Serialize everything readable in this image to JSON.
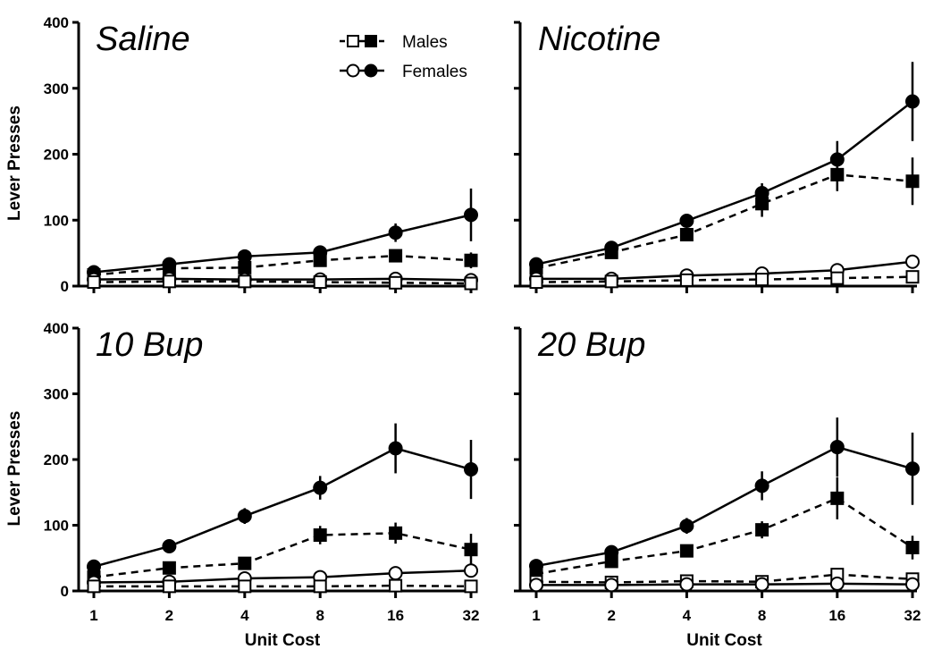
{
  "figure": {
    "legend": {
      "entries": [
        {
          "label": "Males",
          "line": "dashed",
          "markers": [
            "open-square",
            "filled-square"
          ]
        },
        {
          "label": "Females",
          "line": "solid",
          "markers": [
            "open-circle",
            "filled-circle"
          ]
        }
      ]
    },
    "x_title": "Unit Cost",
    "y_title": "Lever Presses"
  },
  "chart_data": [
    {
      "type": "line",
      "title": "Saline",
      "xlabel": "Unit Cost",
      "ylabel": "Lever Presses",
      "x": [
        1,
        2,
        4,
        8,
        16,
        32
      ],
      "x_scale": "log2",
      "y_ticks": [
        0,
        100,
        200,
        300,
        400
      ],
      "ylim": [
        0,
        400
      ],
      "series": [
        {
          "name": "Females",
          "marker": "filled-circle",
          "line": "solid",
          "values": [
            21,
            33,
            45,
            51,
            81,
            108
          ],
          "errors": [
            3,
            5,
            4,
            6,
            14,
            40
          ]
        },
        {
          "name": "Males",
          "marker": "filled-square",
          "line": "dashed",
          "values": [
            17,
            27,
            28,
            39,
            46,
            39
          ],
          "errors": [
            3,
            4,
            7,
            6,
            8,
            12
          ]
        },
        {
          "name": "Females",
          "marker": "open-circle",
          "line": "solid",
          "values": [
            10,
            11,
            10,
            10,
            11,
            9
          ],
          "errors": [
            2,
            2,
            2,
            2,
            2,
            2
          ]
        },
        {
          "name": "Males",
          "marker": "open-square",
          "line": "dashed",
          "values": [
            6,
            7,
            7,
            6,
            5,
            4
          ],
          "errors": [
            1,
            1,
            1,
            1,
            1,
            1
          ]
        }
      ]
    },
    {
      "type": "line",
      "title": "Nicotine",
      "xlabel": "Unit Cost",
      "ylabel": "",
      "x": [
        1,
        2,
        4,
        8,
        16,
        32
      ],
      "x_scale": "log2",
      "y_ticks": [
        0,
        100,
        200,
        300,
        400
      ],
      "ylim": [
        0,
        400
      ],
      "series": [
        {
          "name": "Females",
          "marker": "filled-circle",
          "line": "solid",
          "values": [
            33,
            58,
            99,
            141,
            192,
            280
          ],
          "errors": [
            4,
            5,
            10,
            15,
            28,
            60
          ]
        },
        {
          "name": "Males",
          "marker": "filled-square",
          "line": "dashed",
          "values": [
            27,
            51,
            78,
            125,
            169,
            159
          ],
          "errors": [
            4,
            6,
            10,
            20,
            25,
            36
          ]
        },
        {
          "name": "Females",
          "marker": "open-circle",
          "line": "solid",
          "values": [
            11,
            11,
            16,
            19,
            24,
            37
          ],
          "errors": [
            2,
            2,
            2,
            3,
            3,
            4
          ]
        },
        {
          "name": "Males",
          "marker": "open-square",
          "line": "dashed",
          "values": [
            6,
            7,
            9,
            10,
            12,
            14
          ],
          "errors": [
            1,
            1,
            1,
            1,
            1,
            2
          ]
        }
      ]
    },
    {
      "type": "line",
      "title": "10 Bup",
      "xlabel": "Unit Cost",
      "ylabel": "Lever Presses",
      "x": [
        1,
        2,
        4,
        8,
        16,
        32
      ],
      "x_scale": "log2",
      "y_ticks": [
        0,
        100,
        200,
        300,
        400
      ],
      "ylim": [
        0,
        400
      ],
      "series": [
        {
          "name": "Females",
          "marker": "filled-circle",
          "line": "solid",
          "values": [
            37,
            68,
            114,
            157,
            217,
            185
          ],
          "errors": [
            4,
            5,
            12,
            18,
            38,
            45
          ]
        },
        {
          "name": "Males",
          "marker": "filled-square",
          "line": "dashed",
          "values": [
            21,
            35,
            42,
            85,
            88,
            63
          ],
          "errors": [
            3,
            4,
            5,
            14,
            16,
            24
          ]
        },
        {
          "name": "Females",
          "marker": "open-circle",
          "line": "solid",
          "values": [
            13,
            14,
            19,
            21,
            27,
            31
          ],
          "errors": [
            2,
            2,
            3,
            3,
            4,
            5
          ]
        },
        {
          "name": "Males",
          "marker": "open-square",
          "line": "dashed",
          "values": [
            7,
            7,
            7,
            7,
            8,
            7
          ],
          "errors": [
            1,
            1,
            1,
            1,
            1,
            1
          ]
        }
      ]
    },
    {
      "type": "line",
      "title": "20 Bup",
      "xlabel": "Unit Cost",
      "ylabel": "",
      "x": [
        1,
        2,
        4,
        8,
        16,
        32
      ],
      "x_scale": "log2",
      "y_ticks": [
        0,
        100,
        200,
        300,
        400
      ],
      "ylim": [
        0,
        400
      ],
      "series": [
        {
          "name": "Females",
          "marker": "filled-circle",
          "line": "solid",
          "values": [
            38,
            59,
            99,
            160,
            219,
            186
          ],
          "errors": [
            4,
            6,
            12,
            22,
            45,
            55
          ]
        },
        {
          "name": "Males",
          "marker": "filled-square",
          "line": "dashed",
          "values": [
            26,
            45,
            61,
            93,
            141,
            66
          ],
          "errors": [
            4,
            5,
            7,
            13,
            32,
            18
          ]
        },
        {
          "name": "Males",
          "marker": "open-square",
          "line": "dashed",
          "values": [
            14,
            13,
            15,
            14,
            25,
            18
          ],
          "errors": [
            2,
            2,
            2,
            2,
            3,
            3
          ]
        },
        {
          "name": "Females",
          "marker": "open-circle",
          "line": "solid",
          "values": [
            9,
            9,
            10,
            10,
            11,
            10
          ],
          "errors": [
            1,
            1,
            1,
            1,
            2,
            2
          ]
        }
      ]
    }
  ]
}
